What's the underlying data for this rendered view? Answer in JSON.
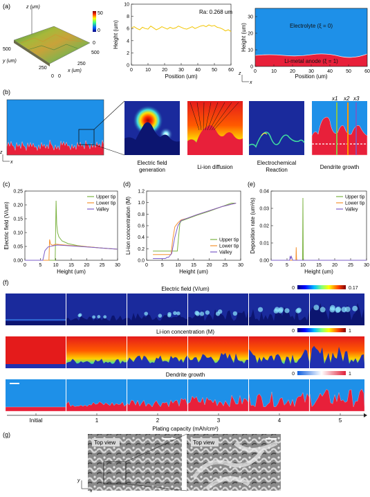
{
  "panel_labels": {
    "a": "(a)",
    "b": "(b)",
    "c": "(c)",
    "d": "(d)",
    "e": "(e)",
    "f": "(f)",
    "g": "(g)"
  },
  "panel_a": {
    "surface3d": {
      "z_axis": "z (um)",
      "x_axis": "x (um)",
      "y_axis": "y (um)",
      "colorbar_max": "50",
      "colorbar_min": "0",
      "tick_500_y": "500",
      "tick_250_y": "250",
      "tick_0_y": "0",
      "tick_0_x": "0",
      "tick_250_x": "250",
      "tick_500_x": "500",
      "tick_0_z": "0"
    },
    "profile_chart": {
      "ylabel": "Height (um)",
      "xlabel": "Position (um)",
      "annotation": "Ra: 0.268 um",
      "xticks": [
        "0",
        "10",
        "20",
        "30",
        "40",
        "50",
        "60"
      ],
      "yticks": [
        "0",
        "2",
        "4",
        "6",
        "8",
        "10"
      ],
      "line_color": "#f2c500"
    },
    "domain_chart": {
      "ylabel": "Height (um)",
      "xlabel": "Position (um)",
      "xticks": [
        "0",
        "10",
        "20",
        "30",
        "40",
        "50",
        "60"
      ],
      "yticks": [
        "0",
        "10",
        "20",
        "30"
      ],
      "electrolyte_label": "Electrolyte (ξ = 0)",
      "anode_label": "Li-metal anode (ξ = 1)",
      "axis_z": "z",
      "axis_x": "x"
    }
  },
  "panel_b": {
    "axis_z": "z",
    "axis_x": "x",
    "captions": [
      "Electric field\ngeneration",
      "Li-ion diffusion",
      "Electrochemical\nReaction",
      "Dendrite growth"
    ],
    "caption_lines": [
      [
        "Electric field",
        "generation"
      ],
      [
        "Li-ion diffusion"
      ],
      [
        "Electrochemical",
        "Reaction"
      ],
      [
        "Dendrite growth"
      ]
    ],
    "probe_labels": [
      "x1",
      "x2",
      "x3"
    ],
    "colors": {
      "electrolyte": "#1e90e8",
      "anode": "#e8203a",
      "field_bg": "#1a2a9c"
    }
  },
  "chart_data": [
    {
      "type": "line",
      "panel": "(c)",
      "xlabel": "Height (um)",
      "ylabel": "Electric field (V/um)",
      "xlim": [
        0,
        30
      ],
      "ylim": [
        0,
        0.25
      ],
      "xticks": [
        "0",
        "5",
        "10",
        "15",
        "20",
        "25",
        "30"
      ],
      "yticks": [
        "0.00",
        "0.05",
        "0.10",
        "0.15",
        "0.20",
        "0.25"
      ],
      "legend_position": "top-right",
      "series": [
        {
          "name": "Upper tip",
          "color": "#7cb342",
          "x": [
            0,
            9.8,
            10.1,
            10.3,
            10.6,
            11,
            12,
            14,
            17,
            20,
            25,
            30
          ],
          "y": [
            0,
            0,
            0.215,
            0.13,
            0.1,
            0.085,
            0.07,
            0.06,
            0.053,
            0.049,
            0.044,
            0.04
          ]
        },
        {
          "name": "Lower tip",
          "color": "#f5922f",
          "x": [
            0,
            7.8,
            8.0,
            8.3,
            9,
            10,
            12,
            15,
            20,
            25,
            30
          ],
          "y": [
            0,
            0,
            0.075,
            0.058,
            0.054,
            0.058,
            0.056,
            0.053,
            0.049,
            0.044,
            0.04
          ]
        },
        {
          "name": "Valley",
          "color": "#7b5cc9",
          "x": [
            0,
            5.8,
            6.5,
            7.5,
            9,
            10.5,
            12,
            15,
            20,
            25,
            30
          ],
          "y": [
            0,
            0,
            0.035,
            0.048,
            0.052,
            0.055,
            0.054,
            0.052,
            0.048,
            0.044,
            0.04
          ]
        }
      ]
    },
    {
      "type": "line",
      "panel": "(d)",
      "xlabel": "Height (um)",
      "ylabel": "Li-ion concentration (M)",
      "xlim": [
        0,
        30
      ],
      "ylim": [
        0,
        1.2
      ],
      "xticks": [
        "0",
        "5",
        "10",
        "15",
        "20",
        "25",
        "30"
      ],
      "yticks": [
        "0.0",
        "0.2",
        "0.4",
        "0.6",
        "0.8",
        "1.0",
        "1.2"
      ],
      "legend_position": "bottom-right",
      "series": [
        {
          "name": "Upper tip",
          "color": "#7cb342",
          "x": [
            2,
            9.8,
            10.2,
            10.6,
            11,
            13,
            16,
            20,
            24,
            27,
            28.5
          ],
          "y": [
            0.16,
            0.16,
            0.4,
            0.64,
            0.68,
            0.72,
            0.78,
            0.85,
            0.93,
            0.99,
            0.99
          ]
        },
        {
          "name": "Lower tip",
          "color": "#f5922f",
          "x": [
            2,
            7.8,
            8.3,
            9,
            10,
            11,
            13,
            16,
            20,
            24,
            28.5
          ],
          "y": [
            0.1,
            0.1,
            0.35,
            0.58,
            0.65,
            0.7,
            0.73,
            0.79,
            0.86,
            0.93,
            0.99
          ]
        },
        {
          "name": "Valley",
          "color": "#7b5cc9",
          "x": [
            2,
            6,
            6.5,
            7,
            8,
            9,
            10,
            11,
            13,
            16,
            20,
            24,
            28.5
          ],
          "y": [
            0.03,
            0.03,
            0.05,
            0.05,
            0.12,
            0.4,
            0.6,
            0.69,
            0.73,
            0.79,
            0.86,
            0.93,
            0.99
          ]
        }
      ]
    },
    {
      "type": "line",
      "panel": "(e)",
      "xlabel": "Height (um)",
      "ylabel": "Deposition rate (um³/s)",
      "xlim": [
        0,
        30
      ],
      "ylim": [
        0,
        0.04
      ],
      "xticks": [
        "0",
        "5",
        "10",
        "15",
        "20",
        "25",
        "30"
      ],
      "yticks": [
        "0.00",
        "0.01",
        "0.02",
        "0.03",
        "0.04"
      ],
      "legend_position": "top-right",
      "series": [
        {
          "name": "Upper tip",
          "color": "#7cb342",
          "x": [
            0,
            9.9,
            10.0,
            10.1,
            10.2,
            30
          ],
          "y": [
            0,
            0,
            0.036,
            0.002,
            0,
            0
          ]
        },
        {
          "name": "Lower tip",
          "color": "#f5922f",
          "x": [
            0,
            7.8,
            7.9,
            8.0,
            8.1,
            30
          ],
          "y": [
            0,
            0,
            0.0075,
            0.001,
            0,
            0
          ]
        },
        {
          "name": "Valley",
          "color": "#7b5cc9",
          "x": [
            0,
            5.8,
            6.0,
            6.2,
            6.4,
            6.6,
            6.8,
            30
          ],
          "y": [
            0,
            0,
            0.0025,
            0.001,
            0.0022,
            0.0008,
            0,
            0
          ]
        }
      ]
    }
  ],
  "panel_f": {
    "rows": [
      {
        "title": "Electric field (V/um)",
        "cb_min": "0",
        "cb_max": "0.17"
      },
      {
        "title": "Li-ion concentration (M)",
        "cb_min": "0",
        "cb_max": "1"
      },
      {
        "title": "Dendrite growth",
        "cb_min": "0",
        "cb_max": "1"
      }
    ],
    "columns": [
      "Initial",
      "1",
      "2",
      "3",
      "4",
      "5"
    ],
    "xlabel": "Plating capacity (mAh/cm²)"
  },
  "panel_g": {
    "left_label": "Top view",
    "right_label": "Top view",
    "axis_y": "y",
    "axis_x": "x"
  }
}
